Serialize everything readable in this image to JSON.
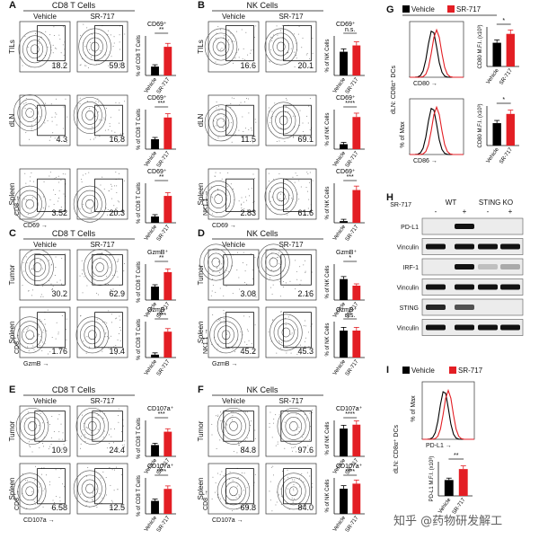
{
  "panels": [
    {
      "letter": "A",
      "title": "CD8 T Cells",
      "cols": [
        "Vehicle",
        "SR-717"
      ],
      "rows": [
        "TILs",
        "dLN",
        "Spleen"
      ],
      "pcts": [
        [
          "18.2",
          "59.8"
        ],
        [
          "4.3",
          "16.8"
        ],
        [
          "3.52",
          "20.3"
        ]
      ],
      "bar_titles": [
        "CD69⁺",
        "CD69⁺",
        "CD69⁺"
      ],
      "ylabel": "% of CD8 T Cells",
      "sig": [
        "**",
        "***",
        "**"
      ],
      "xaxis": "CD69",
      "yaxis": "CD8"
    },
    {
      "letter": "B",
      "title": "NK Cells",
      "cols": [
        "Vehicle",
        "SR-717"
      ],
      "rows": [
        "TILs",
        "dLN",
        "Spleen"
      ],
      "pcts": [
        [
          "16.6",
          "20.1"
        ],
        [
          "11.5",
          "69.1"
        ],
        [
          "2.83",
          "61.6"
        ]
      ],
      "bar_titles": [
        "CD69⁺",
        "CD69⁺",
        "CD69⁺"
      ],
      "ylabel": "% of NK Cells",
      "sig": [
        "n.s.",
        "****",
        "***"
      ],
      "xaxis": "CD69",
      "yaxis": "NK1.1"
    },
    {
      "letter": "C",
      "title": "CD8 T Cells",
      "cols": [
        "Vehicle",
        "SR-717"
      ],
      "rows": [
        "Tumor",
        "Spleen"
      ],
      "pcts": [
        [
          "30.2",
          "62.9"
        ],
        [
          "1.76",
          "19.4"
        ]
      ],
      "bar_titles": [
        "GzmB⁺",
        "GzmB⁺"
      ],
      "ylabel": "% of CD8 T Cells",
      "sig": [
        "**",
        "****"
      ],
      "xaxis": "GzmB",
      "yaxis": "CD8"
    },
    {
      "letter": "D",
      "title": "NK Cells",
      "cols": [
        "Vehicle",
        "SR-717"
      ],
      "rows": [
        "Tumor",
        "Spleen"
      ],
      "pcts": [
        [
          "3.08",
          "2.16"
        ],
        [
          "45.2",
          "45.3"
        ]
      ],
      "bar_titles": [
        "GzmB⁺",
        "GzmB⁺"
      ],
      "ylabel": "% of NK Cells",
      "sig": [
        "*",
        "n.s."
      ],
      "xaxis": "GzmB",
      "yaxis": "NK1.1"
    },
    {
      "letter": "E",
      "title": "CD8 T Cells",
      "cols": [
        "Vehicle",
        "SR-717"
      ],
      "rows": [
        "Tumor",
        "Spleen"
      ],
      "pcts": [
        [
          "10.9",
          "24.4"
        ],
        [
          "6.58",
          "12.5"
        ]
      ],
      "bar_titles": [
        "CD107a⁺",
        "CD107a⁺"
      ],
      "ylabel": "% of CD8 T Cells",
      "sig": [
        "***",
        "****"
      ],
      "xaxis": "CD107a",
      "yaxis": "CD8"
    },
    {
      "letter": "F",
      "title": "NK Cells",
      "cols": [
        "Vehicle",
        "SR-717"
      ],
      "rows": [
        "Tumor",
        "Spleen"
      ],
      "pcts": [
        [
          "84.8",
          "97.6"
        ],
        [
          "69.8",
          "84.0"
        ]
      ],
      "bar_titles": [
        "CD107a⁺",
        "CD107a⁺"
      ],
      "ylabel": "% of NK Cells",
      "sig": [
        "****",
        "****"
      ],
      "xaxis": "CD107a",
      "yaxis": "CD8"
    }
  ],
  "bar_x_labels": [
    "Vehicle",
    "SR-717"
  ],
  "panel_g": {
    "letter": "G",
    "legend": [
      "Vehicle",
      "SR-717"
    ],
    "side_label": "dLN: CD8α⁺ DCs",
    "ylabel": "% of Max",
    "markers": [
      "CD80",
      "CD86"
    ],
    "bar_ylabels": [
      "CD80 M.F.I. (x10³)",
      "CD80 M.F.I. (x10³)"
    ],
    "sig": [
      "*",
      "*"
    ]
  },
  "panel_h": {
    "letter": "H",
    "treatment_label": "SR-717",
    "groups": [
      "WT",
      "STING KO"
    ],
    "signs": [
      "-",
      "+",
      "-",
      "+"
    ],
    "blots": [
      "PD-L1",
      "Vinculin",
      "IRF-1",
      "Vinculin",
      "STING",
      "Vinculin"
    ]
  },
  "panel_i": {
    "letter": "I",
    "legend": [
      "Vehicle",
      "SR-717"
    ],
    "side_label": "dLN: CD8α⁺ DCs",
    "ylabel": "% of Max",
    "marker": "PD-L1",
    "bar_ylabel": "PD-L1 M.F.I. (x10³)",
    "sig": "**"
  },
  "watermark": "知乎 @药物研发解工",
  "colors": {
    "vehicle": "#000000",
    "sr717": "#e31e24"
  },
  "chart_data": [
    {
      "type": "bar",
      "panel": "A",
      "categories": [
        "Vehicle",
        "SR-717"
      ],
      "series": [
        {
          "values": [
            18,
            58
          ]
        },
        {
          "values": [
            5,
            16
          ]
        },
        {
          "values": [
            4,
            17
          ]
        }
      ]
    },
    {
      "type": "bar",
      "panel": "B",
      "categories": [
        "Vehicle",
        "SR-717"
      ],
      "series": [
        {
          "values": [
            15,
            19
          ]
        },
        {
          "values": [
            10,
            65
          ]
        },
        {
          "values": [
            3,
            58
          ]
        }
      ]
    },
    {
      "type": "bar",
      "panel": "C",
      "categories": [
        "Vehicle",
        "SR-717"
      ],
      "series": [
        {
          "values": [
            30,
            62
          ]
        },
        {
          "values": [
            2,
            18
          ]
        }
      ]
    },
    {
      "type": "bar",
      "panel": "D",
      "categories": [
        "Vehicle",
        "SR-717"
      ],
      "series": [
        {
          "values": [
            3.5,
            2.4
          ]
        },
        {
          "values": [
            45,
            45
          ]
        }
      ]
    },
    {
      "type": "bar",
      "panel": "E",
      "categories": [
        "Vehicle",
        "SR-717"
      ],
      "series": [
        {
          "values": [
            11,
            24
          ]
        },
        {
          "values": [
            6.5,
            12.5
          ]
        }
      ]
    },
    {
      "type": "bar",
      "panel": "F",
      "categories": [
        "Vehicle",
        "SR-717"
      ],
      "series": [
        {
          "values": [
            85,
            97
          ]
        },
        {
          "values": [
            70,
            84
          ]
        }
      ]
    },
    {
      "type": "bar",
      "panel": "G",
      "categories": [
        "Vehicle",
        "SR-717"
      ],
      "series": [
        {
          "values": [
            2.4,
            3.3
          ]
        },
        {
          "values": [
            1.7,
            2.4
          ]
        }
      ]
    },
    {
      "type": "bar",
      "panel": "I",
      "categories": [
        "Vehicle",
        "SR-717"
      ],
      "series": [
        {
          "values": [
            1.3,
            2.2
          ]
        }
      ]
    }
  ]
}
